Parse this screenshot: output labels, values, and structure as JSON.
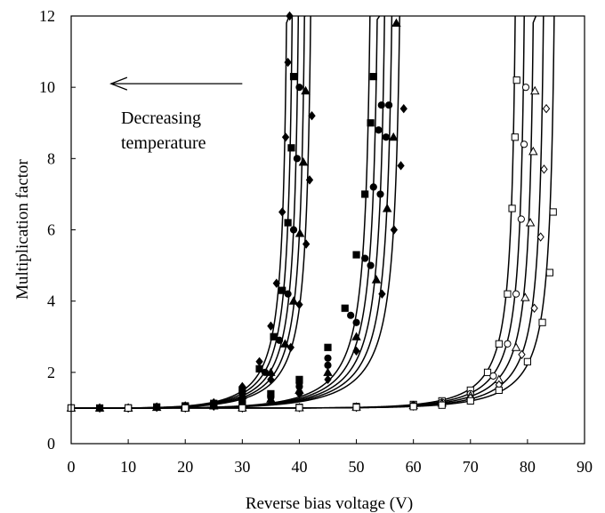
{
  "chart_data": {
    "type": "scatter",
    "title": "",
    "xlabel": "Reverse bias voltage (V)",
    "ylabel": "Multiplication factor",
    "xlim": [
      0,
      90
    ],
    "ylim": [
      0,
      12
    ],
    "xticks": [
      "0",
      "10",
      "20",
      "30",
      "40",
      "50",
      "60",
      "70",
      "80",
      "90"
    ],
    "yticks": [
      "0",
      "2",
      "4",
      "6",
      "8",
      "10",
      "12"
    ],
    "grid": false,
    "legend": "none",
    "annotation": {
      "line1": "Decreasing",
      "line2": "temperature",
      "arrow_from": [
        30,
        10.1
      ],
      "arrow_to": [
        7,
        10.1
      ]
    },
    "groups": [
      {
        "marker_fill": "filled",
        "fit_breakdown_voltages": [
          38.5,
          39.5,
          40.6,
          41.7,
          42.8
        ],
        "series": [
          {
            "marker": "diamond",
            "x": [
              5,
              15,
              20,
              25,
              30,
              33,
              35,
              36,
              37,
              37.6,
              38.0,
              38.3
            ],
            "y": [
              1.0,
              1.03,
              1.06,
              1.15,
              1.6,
              2.3,
              3.3,
              4.5,
              6.5,
              8.6,
              10.7,
              12.0
            ]
          },
          {
            "marker": "square",
            "x": [
              5,
              15,
              20,
              25,
              30,
              33,
              35.5,
              37,
              38,
              38.6,
              39.0
            ],
            "y": [
              1.0,
              1.03,
              1.06,
              1.13,
              1.5,
              2.1,
              3.0,
              4.3,
              6.2,
              8.3,
              10.3
            ]
          },
          {
            "marker": "circle",
            "x": [
              5,
              15,
              20,
              25,
              30,
              34,
              36.5,
              38,
              39,
              39.6,
              40.0
            ],
            "y": [
              1.0,
              1.03,
              1.05,
              1.12,
              1.4,
              2.0,
              2.9,
              4.2,
              6.0,
              8.0,
              10.0
            ]
          },
          {
            "marker": "triangle",
            "x": [
              5,
              15,
              20,
              25,
              30,
              35,
              37.5,
              39,
              40.1,
              40.7,
              41.1
            ],
            "y": [
              1.0,
              1.02,
              1.05,
              1.1,
              1.35,
              2.0,
              2.8,
              4.0,
              5.9,
              7.9,
              9.9
            ]
          },
          {
            "marker": "diamond",
            "x": [
              5,
              15,
              20,
              25,
              30,
              35,
              38.5,
              40,
              41.2,
              41.8,
              42.2
            ],
            "y": [
              1.0,
              1.02,
              1.04,
              1.08,
              1.3,
              1.8,
              2.7,
              3.9,
              5.6,
              7.4,
              9.2
            ]
          }
        ]
      },
      {
        "marker_fill": "filled",
        "fit_breakdown_voltages": [
          53.3,
          54.6,
          55.9,
          57.2,
          58.6
        ],
        "series": [
          {
            "marker": "square",
            "x": [
              10,
              20,
              25,
              30,
              35,
              40,
              45,
              48,
              50,
              51.5,
              52.5,
              53.0
            ],
            "y": [
              1.0,
              1.04,
              1.1,
              1.2,
              1.4,
              1.8,
              2.7,
              3.8,
              5.3,
              7.0,
              9.0,
              10.3
            ]
          },
          {
            "marker": "circle",
            "x": [
              10,
              20,
              25,
              30,
              35,
              40,
              45,
              49,
              51.5,
              53.0,
              53.9,
              54.4
            ],
            "y": [
              1.0,
              1.03,
              1.08,
              1.18,
              1.35,
              1.7,
              2.4,
              3.6,
              5.2,
              7.2,
              8.8,
              9.5
            ]
          },
          {
            "marker": "circle",
            "x": [
              10,
              20,
              25,
              30,
              35,
              40,
              45,
              50,
              52.5,
              54.2,
              55.2,
              55.7
            ],
            "y": [
              1.0,
              1.03,
              1.07,
              1.15,
              1.3,
              1.6,
              2.2,
              3.4,
              5.0,
              7.0,
              8.6,
              9.5
            ]
          },
          {
            "marker": "triangle",
            "x": [
              10,
              20,
              25,
              30,
              35,
              40,
              45,
              50,
              53.5,
              55.4,
              56.5,
              57.0
            ],
            "y": [
              1.0,
              1.02,
              1.06,
              1.12,
              1.25,
              1.5,
              2.0,
              3.0,
              4.6,
              6.6,
              8.6,
              11.8
            ]
          },
          {
            "marker": "diamond",
            "x": [
              10,
              20,
              25,
              30,
              35,
              40,
              45,
              50,
              54.5,
              56.6,
              57.8,
              58.3
            ],
            "y": [
              1.0,
              1.02,
              1.05,
              1.1,
              1.2,
              1.4,
              1.8,
              2.6,
              4.2,
              6.0,
              7.8,
              9.4
            ]
          }
        ]
      },
      {
        "marker_fill": "open",
        "fit_breakdown_voltages": [
          78.6,
          80.2,
          81.8,
          83.6,
          85.5
        ],
        "series": [
          {
            "marker": "square",
            "x": [
              0,
              10,
              20,
              30,
              40,
              50,
              60,
              65,
              70,
              73,
              75,
              76.5,
              77.3,
              77.8,
              78.1
            ],
            "y": [
              1.0,
              1.0,
              1.0,
              1.01,
              1.02,
              1.04,
              1.1,
              1.2,
              1.5,
              2.0,
              2.8,
              4.2,
              6.6,
              8.6,
              10.2
            ]
          },
          {
            "marker": "circle",
            "x": [
              0,
              10,
              20,
              30,
              40,
              50,
              60,
              65,
              70,
              74,
              76.5,
              78.0,
              78.9,
              79.4,
              79.7
            ],
            "y": [
              1.0,
              1.0,
              1.0,
              1.01,
              1.02,
              1.03,
              1.08,
              1.16,
              1.4,
              1.9,
              2.8,
              4.2,
              6.3,
              8.4,
              10.0
            ]
          },
          {
            "marker": "triangle",
            "x": [
              0,
              10,
              20,
              30,
              40,
              50,
              60,
              65,
              70,
              75,
              78,
              79.6,
              80.5,
              81.0,
              81.3
            ],
            "y": [
              1.0,
              1.0,
              1.0,
              1.01,
              1.01,
              1.03,
              1.07,
              1.14,
              1.35,
              1.8,
              2.7,
              4.1,
              6.2,
              8.2,
              9.9
            ]
          },
          {
            "marker": "diamond",
            "x": [
              0,
              10,
              20,
              30,
              40,
              50,
              60,
              65,
              70,
              75,
              79,
              81.2,
              82.3,
              82.9,
              83.3
            ],
            "y": [
              1.0,
              1.0,
              1.0,
              1.0,
              1.01,
              1.02,
              1.05,
              1.11,
              1.28,
              1.65,
              2.5,
              3.8,
              5.8,
              7.7,
              9.4
            ]
          },
          {
            "marker": "square",
            "x": [
              0,
              10,
              20,
              30,
              40,
              50,
              60,
              65,
              70,
              75,
              80,
              82.6,
              83.9,
              84.5
            ],
            "y": [
              1.0,
              1.0,
              1.0,
              1.0,
              1.01,
              1.02,
              1.04,
              1.08,
              1.2,
              1.5,
              2.3,
              3.4,
              4.8,
              6.5
            ]
          }
        ]
      }
    ]
  }
}
